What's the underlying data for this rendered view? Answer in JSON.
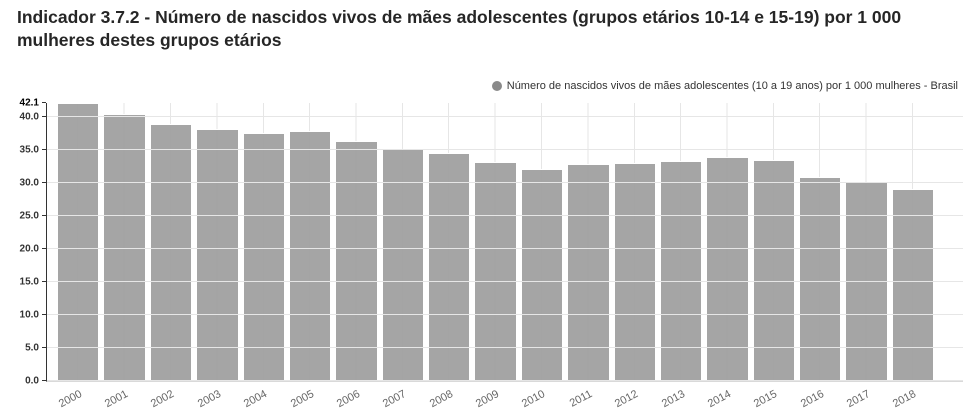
{
  "title": "Indicador 3.7.2 - Número de nascidos vivos de mães adolescentes (grupos etários 10-14 e 15-19) por 1 000 mulheres destes grupos etários",
  "legend": {
    "label": "Número de nascidos vivos de mães adolescentes (10 a 19 anos) por 1 000 mulheres - Brasil",
    "marker_color": "#8a8a8a"
  },
  "chart_data": {
    "type": "bar",
    "title": "Indicador 3.7.2 - Número de nascidos vivos de mães adolescentes (grupos etários 10-14 e 15-19) por 1 000 mulheres destes grupos etários",
    "categories": [
      "2000",
      "2001",
      "2002",
      "2003",
      "2004",
      "2005",
      "2006",
      "2007",
      "2008",
      "2009",
      "2010",
      "2011",
      "2012",
      "2013",
      "2014",
      "2015",
      "2016",
      "2017",
      "2018"
    ],
    "series": [
      {
        "name": "Número de nascidos vivos de mães adolescentes (10 a 19 anos) por 1 000 mulheres - Brasil",
        "color": "#a0a0a0",
        "values": [
          42.1,
          40.5,
          38.9,
          38.2,
          37.6,
          37.9,
          36.4,
          35.1,
          34.5,
          33.2,
          32.1,
          32.8,
          33.0,
          33.3,
          33.9,
          33.4,
          30.9,
          30.2,
          29.1
        ]
      }
    ],
    "xlabel": "",
    "ylabel": "",
    "ylim": [
      0,
      42.1
    ],
    "yticks": [
      0,
      5,
      10,
      15,
      20,
      25,
      30,
      35,
      40
    ],
    "ytick_labels": [
      "0.0",
      "5.0",
      "10.0",
      "15.0",
      "20.0",
      "25.0",
      "30.0",
      "35.0",
      "40.0"
    ],
    "ymax_label": "42.1",
    "grid": true,
    "legend_position": "top-right"
  },
  "colors": {
    "bar": "#a0a0a0",
    "bar_border": "#ffffff",
    "gridline": "#e6e6e6",
    "axis_line": "#333333",
    "y_label": "#333333",
    "y_max_label": "#000000",
    "x_label": "#666666",
    "title": "#262626",
    "legend_text": "#333333"
  }
}
